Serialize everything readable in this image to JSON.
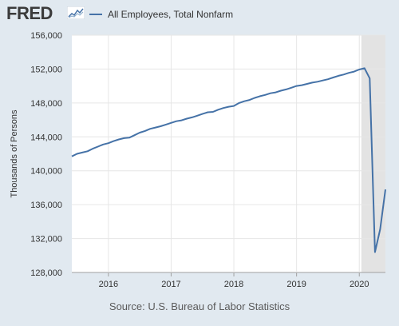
{
  "header": {
    "logo_text": "FRED",
    "logo_icon": "sparkline-chart-icon"
  },
  "legend": {
    "label": "All Employees, Total Nonfarm",
    "color": "#4572a7"
  },
  "source": "Source: U.S. Bureau of Labor Statistics",
  "chart_data": {
    "type": "line",
    "title": "",
    "ylabel": "Thousands of Persons",
    "xlabel": "",
    "ylim": [
      128000,
      156000
    ],
    "yticks": [
      128000,
      132000,
      136000,
      140000,
      144000,
      148000,
      152000,
      156000
    ],
    "ytick_labels": [
      "128,000",
      "132,000",
      "136,000",
      "140,000",
      "144,000",
      "148,000",
      "152,000",
      "156,000"
    ],
    "xlim": [
      "2015-06",
      "2020-06"
    ],
    "xtick_labels": [
      "2016",
      "2017",
      "2018",
      "2019",
      "2020"
    ],
    "xticks": [
      "2016-01",
      "2017-01",
      "2018-01",
      "2019-01",
      "2020-01"
    ],
    "grid": true,
    "recession_shading": {
      "start": "2020-02",
      "end": "2020-06",
      "color": "#e3e3e3"
    },
    "series": [
      {
        "name": "All Employees, Total Nonfarm",
        "color": "#4572a7",
        "dates": [
          "2015-06",
          "2015-07",
          "2015-08",
          "2015-09",
          "2015-10",
          "2015-11",
          "2015-12",
          "2016-01",
          "2016-02",
          "2016-03",
          "2016-04",
          "2016-05",
          "2016-06",
          "2016-07",
          "2016-08",
          "2016-09",
          "2016-10",
          "2016-11",
          "2016-12",
          "2017-01",
          "2017-02",
          "2017-03",
          "2017-04",
          "2017-05",
          "2017-06",
          "2017-07",
          "2017-08",
          "2017-09",
          "2017-10",
          "2017-11",
          "2017-12",
          "2018-01",
          "2018-02",
          "2018-03",
          "2018-04",
          "2018-05",
          "2018-06",
          "2018-07",
          "2018-08",
          "2018-09",
          "2018-10",
          "2018-11",
          "2018-12",
          "2019-01",
          "2019-02",
          "2019-03",
          "2019-04",
          "2019-05",
          "2019-06",
          "2019-07",
          "2019-08",
          "2019-09",
          "2019-10",
          "2019-11",
          "2019-12",
          "2020-01",
          "2020-02",
          "2020-03",
          "2020-04",
          "2020-05",
          "2020-06"
        ],
        "values": [
          141700,
          142000,
          142150,
          142300,
          142600,
          142850,
          143100,
          143250,
          143500,
          143700,
          143850,
          143900,
          144200,
          144500,
          144700,
          144950,
          145100,
          145250,
          145450,
          145650,
          145850,
          145950,
          146150,
          146300,
          146500,
          146700,
          146900,
          146950,
          147200,
          147400,
          147550,
          147650,
          148000,
          148200,
          148350,
          148600,
          148800,
          148950,
          149150,
          149250,
          149450,
          149600,
          149800,
          150000,
          150100,
          150250,
          150400,
          150500,
          150650,
          150800,
          151000,
          151200,
          151350,
          151550,
          151700,
          151950,
          152100,
          150900,
          130400,
          133100,
          137800
        ]
      }
    ]
  }
}
